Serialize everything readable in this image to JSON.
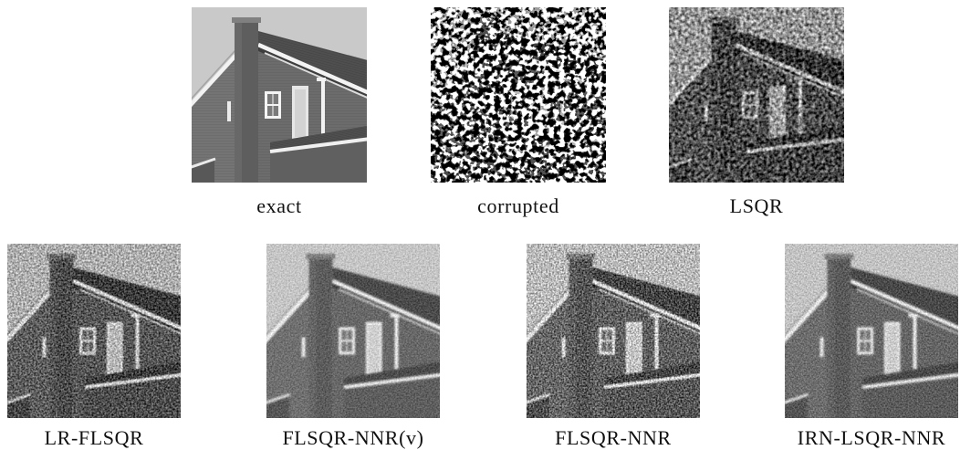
{
  "figure": {
    "top_row": [
      {
        "caption": "exact"
      },
      {
        "caption": "corrupted"
      },
      {
        "caption": "LSQR"
      }
    ],
    "bottom_row": [
      {
        "caption": "LR-FLSQR"
      },
      {
        "caption": "FLSQR-NNR(v)"
      },
      {
        "caption": "FLSQR-NNR"
      },
      {
        "caption": "IRN-LSQR-NNR"
      }
    ]
  }
}
